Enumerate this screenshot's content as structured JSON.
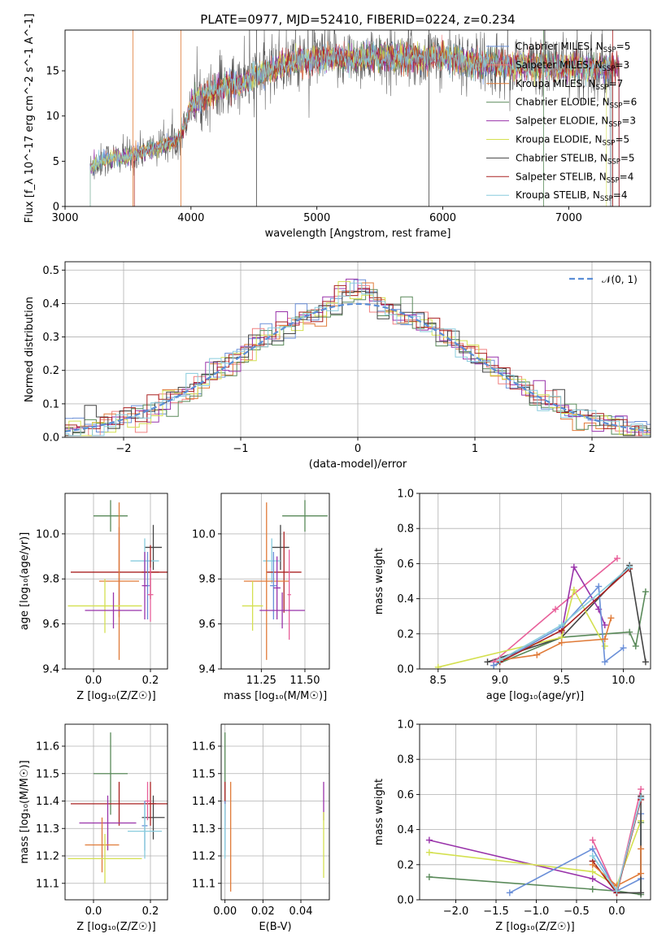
{
  "title": "PLATE=0977, MJD=52410, FIBERID=0224, z=0.234",
  "colors": {
    "chabrier_miles": "#6a8fd8",
    "salpeter_miles": "#f08080",
    "kroupa_miles": "#e07b39",
    "chabrier_elodie": "#5a8a5a",
    "salpeter_elodie": "#9933aa",
    "kroupa_elodie": "#d4e050",
    "chabrier_stelib": "#444444",
    "salpeter_stelib": "#aa2222",
    "kroupa_stelib": "#88ccdd",
    "normal_curve": "#5b8ed6",
    "pink": "#e8609a"
  },
  "chart_data": [
    {
      "type": "line",
      "id": "spectrum",
      "xlabel": "wavelength [Angstrom, rest frame]",
      "ylabel": "Flux [f_λ 10^-17 erg cm^-2 s^-1 A^-1]",
      "xlim": [
        3000,
        7650
      ],
      "ylim": [
        0,
        19.5
      ],
      "xticks": [
        3000,
        4000,
        5000,
        6000,
        7000
      ],
      "yticks": [
        0,
        5,
        10,
        15
      ],
      "grid": false,
      "legend_position": "top-right",
      "legend": [
        {
          "label": "Chabrier MILES, N",
          "sub": "SSP",
          "suffix": "=5",
          "color": "#6a8fd8"
        },
        {
          "label": "Salpeter MILES, N",
          "sub": "SSP",
          "suffix": "=3",
          "color": "#f08080"
        },
        {
          "label": "Kroupa MILES, N",
          "sub": "SSP",
          "suffix": "=7",
          "color": "#e07b39"
        },
        {
          "label": "Chabrier ELODIE, N",
          "sub": "SSP",
          "suffix": "=6",
          "color": "#5a8a5a"
        },
        {
          "label": "Salpeter ELODIE, N",
          "sub": "SSP",
          "suffix": "=3",
          "color": "#9933aa"
        },
        {
          "label": "Kroupa ELODIE, N",
          "sub": "SSP",
          "suffix": "=5",
          "color": "#d4e050"
        },
        {
          "label": "Chabrier STELIB, N",
          "sub": "SSP",
          "suffix": "=5",
          "color": "#444444"
        },
        {
          "label": "Salpeter STELIB, N",
          "sub": "SSP",
          "suffix": "=4",
          "color": "#aa2222"
        },
        {
          "label": "Kroupa STELIB, N",
          "sub": "SSP",
          "suffix": "=4",
          "color": "#88ccdd"
        }
      ],
      "envelope": [
        [
          3200,
          4.2
        ],
        [
          3300,
          5.2
        ],
        [
          3400,
          5.4
        ],
        [
          3500,
          5.5
        ],
        [
          3600,
          6.0
        ],
        [
          3700,
          6.4
        ],
        [
          3800,
          6.8
        ],
        [
          3900,
          7.5
        ],
        [
          3950,
          9.0
        ],
        [
          4000,
          11.2
        ],
        [
          4100,
          12.0
        ],
        [
          4200,
          12.8
        ],
        [
          4300,
          13.5
        ],
        [
          4400,
          13.4
        ],
        [
          4500,
          14.4
        ],
        [
          4600,
          15.0
        ],
        [
          4700,
          15.6
        ],
        [
          4800,
          15.8
        ],
        [
          4900,
          16.2
        ],
        [
          5000,
          16.3
        ],
        [
          5100,
          16.5
        ],
        [
          5200,
          16.4
        ],
        [
          5300,
          16.3
        ],
        [
          5400,
          16.5
        ],
        [
          5500,
          16.4
        ],
        [
          5600,
          16.4
        ],
        [
          5700,
          16.5
        ],
        [
          5800,
          16.3
        ],
        [
          5900,
          16.4
        ],
        [
          6000,
          16.5
        ],
        [
          6100,
          16.2
        ],
        [
          6200,
          16.0
        ],
        [
          6300,
          15.8
        ],
        [
          6400,
          15.7
        ],
        [
          6500,
          15.6
        ],
        [
          6600,
          15.5
        ],
        [
          6700,
          15.5
        ],
        [
          6800,
          15.6
        ],
        [
          6900,
          15.5
        ],
        [
          7000,
          15.4
        ],
        [
          7100,
          15.5
        ],
        [
          7200,
          15.4
        ],
        [
          7300,
          15.3
        ],
        [
          7400,
          15.5
        ]
      ],
      "series_start": [
        3200,
        3200,
        3550,
        3200,
        3200,
        3200,
        3200,
        3550,
        3200
      ],
      "series_end": [
        7330,
        7330,
        7400,
        7400,
        7400,
        7300,
        7340,
        7400,
        7330
      ]
    },
    {
      "type": "histogram",
      "id": "residuals",
      "xlabel": "(data-model)/error",
      "ylabel": "Normed distribution",
      "xlim": [
        -2.5,
        2.5
      ],
      "ylim": [
        0,
        0.525
      ],
      "xticks": [
        -2,
        -1,
        0,
        1,
        2
      ],
      "yticks": [
        0,
        0.1,
        0.2,
        0.3,
        0.4,
        0.5
      ],
      "grid": true,
      "legend": [
        {
          "label": "𝒩(0, 1)",
          "color": "#5b8ed6",
          "style": "dashed"
        }
      ],
      "legend_position": "top-right",
      "bin_width": 0.1
    },
    {
      "type": "scatter",
      "id": "age_vs_Z",
      "xlabel": "Z [log₁₀(Z/Z☉)]",
      "ylabel": "age  [log₁₀(age/yr)]",
      "xlim": [
        -0.1,
        0.26
      ],
      "ylim": [
        9.4,
        10.18
      ],
      "xticks": [
        0.0,
        0.2
      ],
      "yticks": [
        9.4,
        9.6,
        9.8,
        10.0
      ],
      "grid": true,
      "points": [
        {
          "x": 0.06,
          "y": 10.08,
          "xerr": 0.06,
          "yerr": 0.07,
          "color": "#5a8a5a"
        },
        {
          "x": 0.21,
          "y": 9.94,
          "xerr": 0.03,
          "yerr": 0.1,
          "color": "#444444"
        },
        {
          "x": 0.18,
          "y": 9.88,
          "xerr": 0.05,
          "yerr": 0.1,
          "color": "#88ccdd"
        },
        {
          "x": 0.09,
          "y": 9.83,
          "xerr": 0.17,
          "yerr": 0.2,
          "color": "#aa2222"
        },
        {
          "x": 0.2,
          "y": 9.83,
          "xerr": 0.03,
          "yerr": 0.12,
          "color": "#aa2222"
        },
        {
          "x": 0.09,
          "y": 9.79,
          "xerr": 0.07,
          "yerr": 0.35,
          "color": "#e07b39"
        },
        {
          "x": 0.19,
          "y": 9.77,
          "xerr": 0.01,
          "yerr": 0.15,
          "color": "#6a8fd8"
        },
        {
          "x": 0.18,
          "y": 9.77,
          "xerr": 0.01,
          "yerr": 0.15,
          "color": "#9933aa"
        },
        {
          "x": 0.2,
          "y": 9.73,
          "xerr": 0.01,
          "yerr": 0.12,
          "color": "#e8609a"
        },
        {
          "x": 0.04,
          "y": 9.68,
          "xerr": 0.13,
          "yerr": 0.12,
          "color": "#d4e050"
        },
        {
          "x": 0.07,
          "y": 9.66,
          "xerr": 0.1,
          "yerr": 0.08,
          "color": "#9933aa"
        }
      ]
    },
    {
      "type": "scatter",
      "id": "age_vs_mass",
      "xlabel": "mass [log₁₀(M/M☉)]",
      "ylabel": "",
      "xlim": [
        11.02,
        11.64
      ],
      "ylim": [
        9.4,
        10.18
      ],
      "xticks": [
        11.25,
        11.5
      ],
      "yticks": [
        9.4,
        9.6,
        9.8,
        10.0
      ],
      "grid": true,
      "points": [
        {
          "x": 11.5,
          "y": 10.08,
          "xerr": 0.13,
          "yerr": 0.07,
          "color": "#5a8a5a"
        },
        {
          "x": 11.36,
          "y": 9.94,
          "xerr": 0.05,
          "yerr": 0.1,
          "color": "#444444"
        },
        {
          "x": 11.31,
          "y": 9.88,
          "xerr": 0.05,
          "yerr": 0.1,
          "color": "#88ccdd"
        },
        {
          "x": 11.38,
          "y": 9.83,
          "xerr": 0.1,
          "yerr": 0.18,
          "color": "#aa2222"
        },
        {
          "x": 11.28,
          "y": 9.79,
          "xerr": 0.13,
          "yerr": 0.35,
          "color": "#e07b39"
        },
        {
          "x": 11.32,
          "y": 9.77,
          "xerr": 0.02,
          "yerr": 0.15,
          "color": "#6a8fd8"
        },
        {
          "x": 11.34,
          "y": 9.76,
          "xerr": 0.02,
          "yerr": 0.14,
          "color": "#9933aa"
        },
        {
          "x": 11.41,
          "y": 9.73,
          "xerr": 0.01,
          "yerr": 0.2,
          "color": "#e8609a"
        },
        {
          "x": 11.2,
          "y": 9.68,
          "xerr": 0.06,
          "yerr": 0.11,
          "color": "#d4e050"
        },
        {
          "x": 11.37,
          "y": 9.66,
          "xerr": 0.13,
          "yerr": 0.08,
          "color": "#9933aa"
        }
      ]
    },
    {
      "type": "line",
      "id": "weight_vs_age",
      "xlabel": "age  [log₁₀(age/yr)]",
      "ylabel": "mass weight",
      "xlim": [
        8.35,
        10.22
      ],
      "ylim": [
        0,
        1.0
      ],
      "xticks": [
        8.5,
        9.0,
        9.5,
        10.0
      ],
      "yticks": [
        0,
        0.2,
        0.4,
        0.6,
        0.8,
        1.0
      ],
      "grid": true,
      "series": [
        {
          "color": "#5a8a5a",
          "x": [
            8.95,
            9.5,
            10.05,
            10.1,
            10.18
          ],
          "y": [
            0.02,
            0.18,
            0.21,
            0.13,
            0.44
          ]
        },
        {
          "color": "#444444",
          "x": [
            8.9,
            9.5,
            10.05,
            10.18
          ],
          "y": [
            0.04,
            0.18,
            0.59,
            0.04
          ]
        },
        {
          "color": "#e8609a",
          "x": [
            8.95,
            9.45,
            9.95
          ],
          "y": [
            0.04,
            0.34,
            0.63
          ]
        },
        {
          "color": "#9933aa",
          "x": [
            9.5,
            9.6,
            9.8,
            9.85
          ],
          "y": [
            0.21,
            0.58,
            0.34,
            0.25
          ]
        },
        {
          "color": "#d4e050",
          "x": [
            8.5,
            9.5,
            9.6,
            9.85
          ],
          "y": [
            0.01,
            0.18,
            0.45,
            0.13
          ]
        },
        {
          "color": "#6a8fd8",
          "x": [
            8.95,
            9.5,
            9.8,
            9.85,
            10.0
          ],
          "y": [
            0.02,
            0.24,
            0.47,
            0.04,
            0.12
          ]
        },
        {
          "color": "#e07b39",
          "x": [
            9.0,
            9.3,
            9.5,
            9.85,
            9.9
          ],
          "y": [
            0.05,
            0.08,
            0.15,
            0.17,
            0.29
          ]
        },
        {
          "color": "#aa2222",
          "x": [
            9.0,
            9.5,
            10.05
          ],
          "y": [
            0.04,
            0.22,
            0.57
          ]
        },
        {
          "color": "#88ccdd",
          "x": [
            9.0,
            9.5,
            10.05
          ],
          "y": [
            0.05,
            0.25,
            0.58
          ]
        }
      ]
    },
    {
      "type": "scatter",
      "id": "mass_vs_Z",
      "xlabel": "Z [log₁₀(Z/Z☉)]",
      "ylabel": "mass [log₁₀(M/M☉)]",
      "xlim": [
        -0.1,
        0.26
      ],
      "ylim": [
        11.04,
        11.68
      ],
      "xticks": [
        0.0,
        0.2
      ],
      "yticks": [
        11.1,
        11.2,
        11.3,
        11.4,
        11.5,
        11.6
      ],
      "grid": true,
      "points": [
        {
          "x": 0.06,
          "y": 11.5,
          "xerr": 0.06,
          "yerr": 0.15,
          "color": "#5a8a5a"
        },
        {
          "x": 0.21,
          "y": 11.34,
          "xerr": 0.04,
          "yerr": 0.08,
          "color": "#444444"
        },
        {
          "x": 0.09,
          "y": 11.39,
          "xerr": 0.17,
          "yerr": 0.08,
          "color": "#aa2222"
        },
        {
          "x": 0.2,
          "y": 11.39,
          "xerr": 0.02,
          "yerr": 0.08,
          "color": "#aa2222"
        },
        {
          "x": 0.19,
          "y": 11.4,
          "xerr": 0.01,
          "yerr": 0.07,
          "color": "#e8609a"
        },
        {
          "x": 0.05,
          "y": 11.32,
          "xerr": 0.1,
          "yerr": 0.1,
          "color": "#9933aa"
        },
        {
          "x": 0.18,
          "y": 11.31,
          "xerr": 0.01,
          "yerr": 0.09,
          "color": "#6a8fd8"
        },
        {
          "x": 0.18,
          "y": 11.29,
          "xerr": 0.06,
          "yerr": 0.1,
          "color": "#88ccdd"
        },
        {
          "x": 0.03,
          "y": 11.24,
          "xerr": 0.06,
          "yerr": 0.1,
          "color": "#e07b39"
        },
        {
          "x": 0.04,
          "y": 11.19,
          "xerr": 0.13,
          "yerr": 0.09,
          "color": "#d4e050"
        }
      ]
    },
    {
      "type": "scatter",
      "id": "mass_vs_ebv",
      "xlabel": "E(B-V)",
      "ylabel": "",
      "xlim": [
        -0.002,
        0.055
      ],
      "ylim": [
        11.04,
        11.68
      ],
      "xticks": [
        0.0,
        0.02,
        0.04
      ],
      "yticks": [
        11.1,
        11.2,
        11.3,
        11.4,
        11.5,
        11.6
      ],
      "grid": true,
      "points": [
        {
          "x": 0.0,
          "y": 11.5,
          "xerr": 0.0,
          "yerr": 0.15,
          "color": "#5a8a5a"
        },
        {
          "x": 0.0,
          "y": 11.39,
          "xerr": 0.0,
          "yerr": 0.08,
          "color": "#aa2222"
        },
        {
          "x": 0.0,
          "y": 11.31,
          "xerr": 0.0,
          "yerr": 0.09,
          "color": "#6a8fd8"
        },
        {
          "x": 0.0,
          "y": 11.29,
          "xerr": 0.0,
          "yerr": 0.1,
          "color": "#88ccdd"
        },
        {
          "x": 0.003,
          "y": 11.27,
          "xerr": 0.0,
          "yerr": 0.2,
          "color": "#e07b39"
        },
        {
          "x": 0.052,
          "y": 11.4,
          "xerr": 0.0,
          "yerr": 0.07,
          "color": "#9933aa"
        },
        {
          "x": 0.052,
          "y": 11.24,
          "xerr": 0.0,
          "yerr": 0.12,
          "color": "#d4e050"
        }
      ]
    },
    {
      "type": "line",
      "id": "weight_vs_Z",
      "xlabel": "Z [log₁₀(Z/Z☉)]",
      "ylabel": "mass weight",
      "xlim": [
        -2.45,
        0.42
      ],
      "ylim": [
        0,
        1.0
      ],
      "xticks": [
        -2.0,
        -1.5,
        -1.0,
        -0.5,
        0.0
      ],
      "yticks": [
        0,
        0.2,
        0.4,
        0.6,
        0.8,
        1.0
      ],
      "grid": true,
      "series": [
        {
          "color": "#5a8a5a",
          "x": [
            -2.33,
            -0.3,
            0.0,
            0.3,
            0.3
          ],
          "y": [
            0.13,
            0.06,
            0.05,
            0.03,
            0.44
          ]
        },
        {
          "color": "#9933aa",
          "x": [
            -2.33,
            -0.3,
            0.0,
            0.3
          ],
          "y": [
            0.34,
            0.12,
            0.04,
            0.58
          ]
        },
        {
          "color": "#d4e050",
          "x": [
            -2.33,
            -0.3,
            0.0,
            0.3
          ],
          "y": [
            0.27,
            0.16,
            0.08,
            0.45
          ]
        },
        {
          "color": "#6a8fd8",
          "x": [
            -1.33,
            -0.3,
            0.0,
            0.3,
            0.3
          ],
          "y": [
            0.04,
            0.29,
            0.05,
            0.12,
            0.49
          ]
        },
        {
          "color": "#e8609a",
          "x": [
            -0.3,
            0.0,
            0.3
          ],
          "y": [
            0.34,
            0.04,
            0.63
          ]
        },
        {
          "color": "#444444",
          "x": [
            -0.3,
            0.0,
            0.3,
            0.3
          ],
          "y": [
            0.22,
            0.04,
            0.04,
            0.59
          ]
        },
        {
          "color": "#aa2222",
          "x": [
            -0.3,
            0.0,
            0.3
          ],
          "y": [
            0.22,
            0.04,
            0.57
          ]
        },
        {
          "color": "#e07b39",
          "x": [
            -0.3,
            0.0,
            0.3,
            0.3
          ],
          "y": [
            0.2,
            0.08,
            0.15,
            0.29
          ]
        },
        {
          "color": "#88ccdd",
          "x": [
            -0.3,
            0.0,
            0.3
          ],
          "y": [
            0.25,
            0.05,
            0.58
          ]
        }
      ]
    }
  ]
}
